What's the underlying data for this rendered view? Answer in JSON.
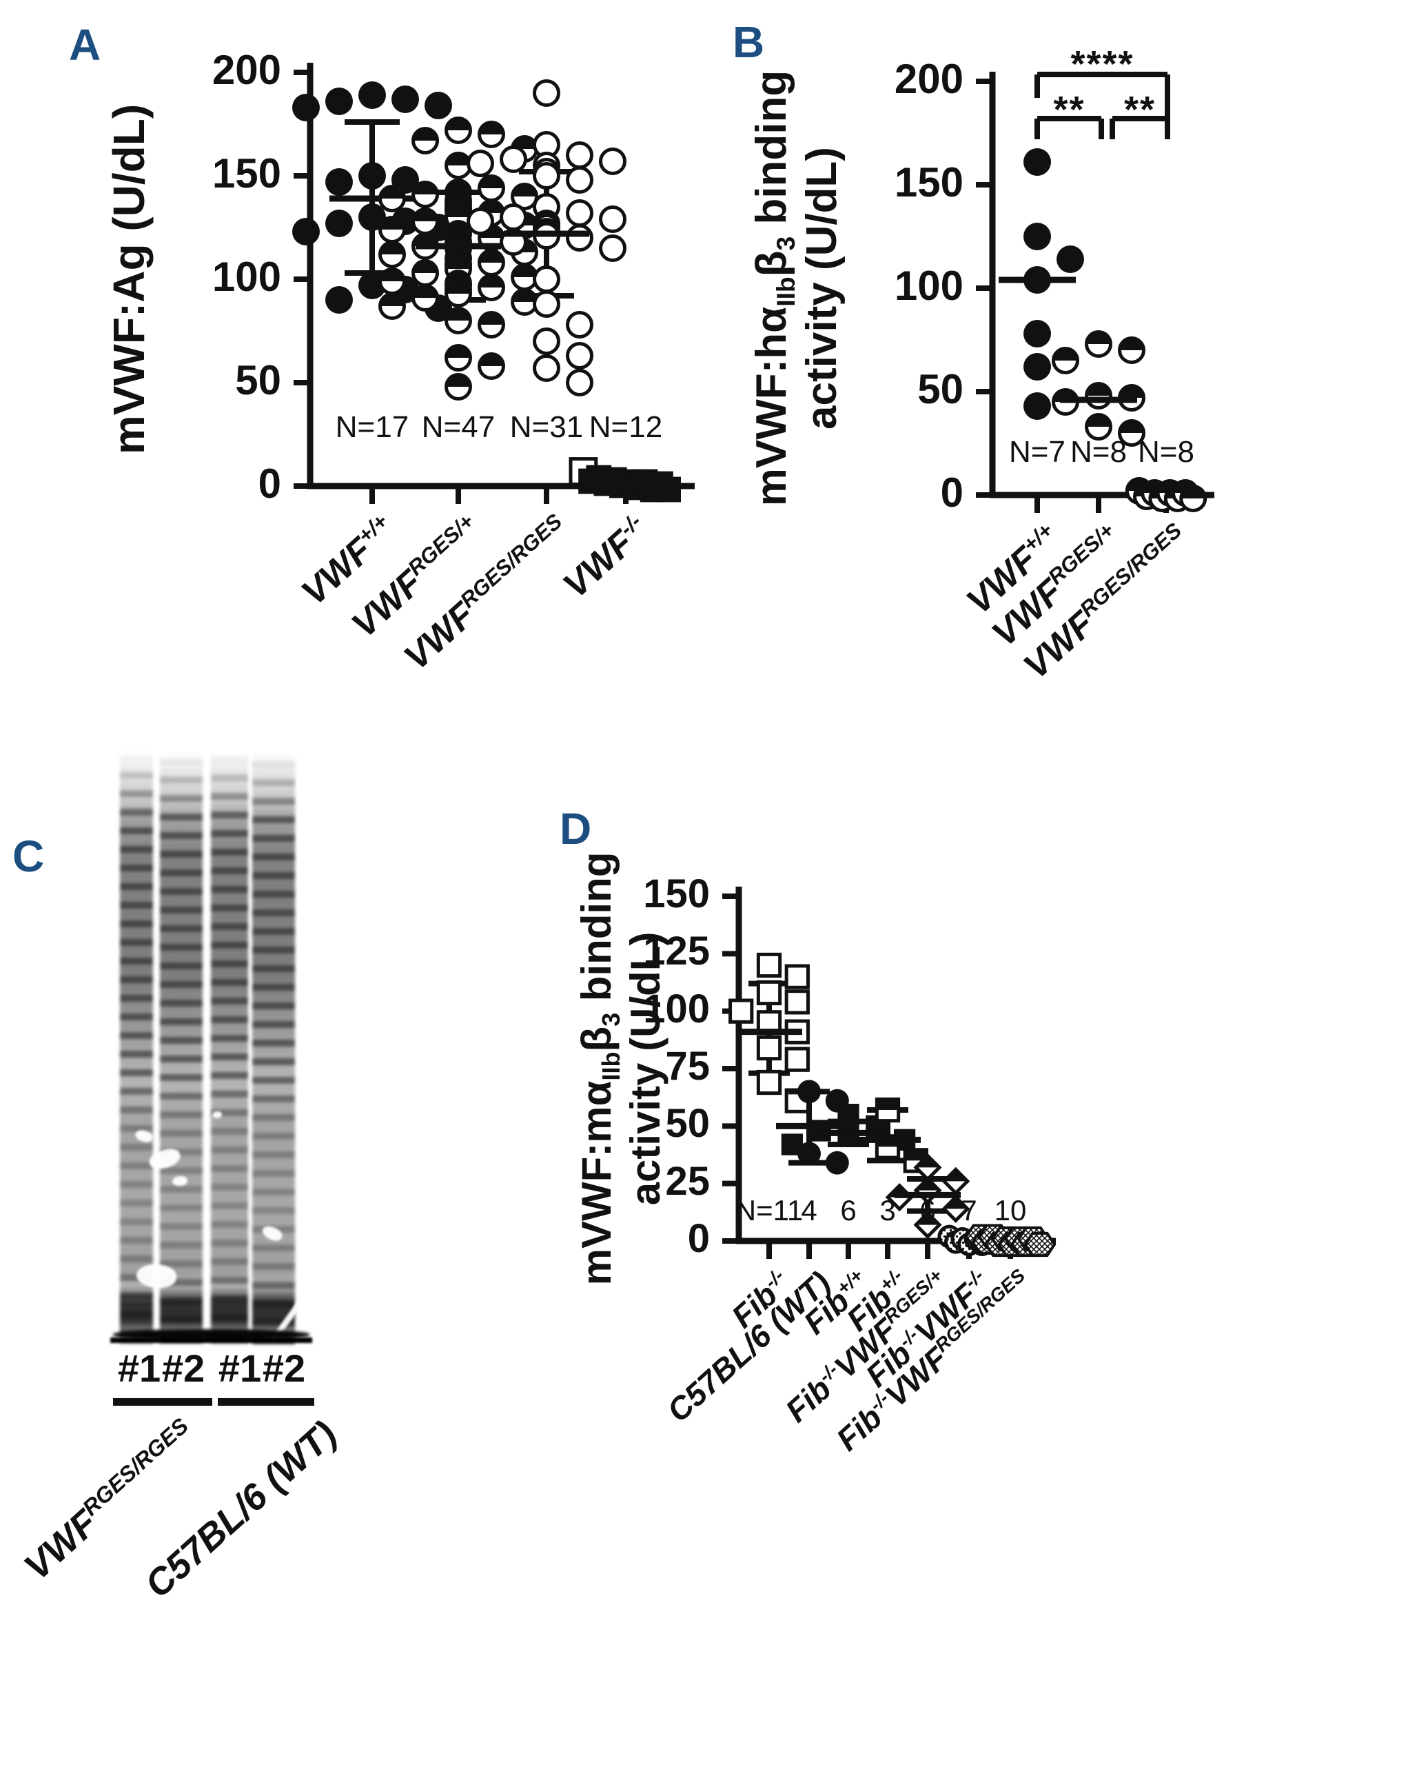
{
  "accent": "#1c4e80",
  "panels": {
    "a": {
      "letter": "A"
    },
    "b": {
      "letter": "B"
    },
    "c": {
      "letter": "C"
    },
    "d": {
      "letter": "D"
    }
  },
  "gel": {
    "lane_labels": [
      "#1",
      "#2",
      "#1",
      "#2"
    ],
    "group_labels": [
      {
        "segments": [
          {
            "t": "VWF"
          },
          {
            "t": "RGES/RGES",
            "sup": true
          }
        ]
      },
      {
        "segments": [
          {
            "t": "C57BL/6 (WT)"
          }
        ]
      }
    ]
  },
  "chart_data": [
    {
      "id": "A",
      "type": "scatter",
      "ylabel_lines": [
        [
          {
            "t": "mVWF:Ag (U/dL)"
          }
        ]
      ],
      "ylim": [
        0,
        200
      ],
      "yticks": [
        0,
        50,
        100,
        150,
        200
      ],
      "grid": false,
      "groups": [
        {
          "label": [
            {
              "t": "VWF"
            },
            {
              "t": "+/+",
              "sup": true
            }
          ],
          "n": "N=17",
          "symbol": "circle-filled",
          "values": [
            189,
            187,
            186,
            184,
            183,
            150,
            148,
            147,
            130,
            128,
            127,
            125,
            123,
            97,
            95,
            90,
            86
          ],
          "mean": 139,
          "err": [
            103,
            176
          ]
        },
        {
          "label": [
            {
              "t": "VWF"
            },
            {
              "t": "RGES/+",
              "sup": true
            }
          ],
          "n": "N=47",
          "symbol": "circle-half",
          "values": [
            172,
            170,
            167,
            163,
            155,
            144,
            142,
            141,
            140,
            139,
            138,
            136,
            134,
            133,
            132,
            130,
            128,
            126,
            124,
            122,
            120,
            118,
            117,
            116,
            115,
            113,
            112,
            110,
            108,
            107,
            105,
            103,
            101,
            99,
            98,
            97,
            96,
            95,
            93,
            91,
            89,
            87,
            80,
            78,
            62,
            58,
            48
          ],
          "mean": 116,
          "err": [
            90,
            142
          ]
        },
        {
          "label": [
            {
              "t": "VWF"
            },
            {
              "t": "RGES/RGES",
              "sup": true
            }
          ],
          "n": "N=31",
          "symbol": "circle-open",
          "values": [
            190,
            165,
            160,
            158,
            157,
            156,
            155,
            152,
            150,
            148,
            135,
            132,
            130,
            129,
            128,
            127,
            126,
            125,
            123,
            122,
            121,
            120,
            118,
            115,
            100,
            88,
            78,
            70,
            63,
            57,
            50
          ],
          "mean": 122,
          "err": [
            92,
            152
          ]
        },
        {
          "label": [
            {
              "t": "VWF"
            },
            {
              "t": "-/-",
              "sup": true
            }
          ],
          "n": "N=12",
          "symbol": "square-filled",
          "cluster": "flat",
          "values": [
            {
              "v": 6,
              "sym": "square-open"
            },
            4,
            3,
            3,
            2,
            2,
            1,
            1,
            1,
            0,
            0,
            0
          ]
        }
      ]
    },
    {
      "id": "B",
      "type": "scatter",
      "ylabel_lines": [
        [
          {
            "t": "mVWF:hα"
          },
          {
            "t": "IIb",
            "sub": true
          },
          {
            "t": "β"
          },
          {
            "t": "3",
            "sub": true
          },
          {
            "t": " binding"
          }
        ],
        [
          {
            "t": "activity (U/dL)"
          }
        ]
      ],
      "ylim": [
        0,
        200
      ],
      "yticks": [
        0,
        50,
        100,
        150,
        200
      ],
      "grid": false,
      "groups": [
        {
          "label": [
            {
              "t": "VWF"
            },
            {
              "t": "+/+",
              "sup": true
            }
          ],
          "n": "N=7",
          "symbol": "circle-filled",
          "values": [
            161,
            125,
            114,
            104,
            78,
            62,
            43
          ],
          "mean": 104
        },
        {
          "label": [
            {
              "t": "VWF"
            },
            {
              "t": "RGES/+",
              "sup": true
            }
          ],
          "n": "N=8",
          "symbol": "circle-half",
          "values": [
            73,
            70,
            65,
            48,
            47,
            45,
            33,
            30
          ],
          "mean": 46
        },
        {
          "label": [
            {
              "t": "VWF"
            },
            {
              "t": "RGES/RGES",
              "sup": true
            }
          ],
          "n": "N=8",
          "symbol": "circle-half",
          "cluster": "flat",
          "values": [
            1,
            1,
            0,
            0,
            0,
            0,
            0,
            0
          ]
        }
      ],
      "brackets": [
        {
          "from": 0,
          "to": 1,
          "label": "**",
          "level": 0
        },
        {
          "from": 1,
          "to": 2,
          "label": "**",
          "level": 0
        },
        {
          "from": 0,
          "to": 2,
          "label": "****",
          "level": 1
        }
      ]
    },
    {
      "id": "D",
      "type": "scatter",
      "ylabel_lines": [
        [
          {
            "t": "mVWF:mα"
          },
          {
            "t": "IIb",
            "sub": true
          },
          {
            "t": "β"
          },
          {
            "t": "3",
            "sub": true
          },
          {
            "t": " binding"
          }
        ],
        [
          {
            "t": "activity (U/dL)"
          }
        ]
      ],
      "ylim": [
        0,
        150
      ],
      "yticks": [
        0,
        25,
        50,
        75,
        100,
        125,
        150
      ],
      "grid": false,
      "groups": [
        {
          "label": [
            {
              "t": "Fib"
            },
            {
              "t": "-/-",
              "sup": true
            }
          ],
          "n": "N=11",
          "symbol": "square-open",
          "values": [
            120,
            115,
            108,
            104,
            100,
            95,
            91,
            84,
            79,
            69,
            61
          ],
          "mean": 91,
          "err": [
            73,
            112
          ]
        },
        {
          "label": [
            {
              "t": "C57BL/6 (WT)"
            }
          ],
          "n": "4",
          "symbol": "circle-filled",
          "values": [
            65,
            61,
            38,
            34
          ],
          "mean": 50,
          "err": [
            34,
            65
          ]
        },
        {
          "label": [
            {
              "t": "Fib"
            },
            {
              "t": "+/+",
              "sup": true
            }
          ],
          "n": "6",
          "symbol": "square-filled",
          "values": [
            55,
            50,
            48,
            46,
            44,
            42
          ],
          "mean": 47,
          "err": [
            42,
            52
          ]
        },
        {
          "label": [
            {
              "t": "Fib"
            },
            {
              "t": "+/-",
              "sup": true
            }
          ],
          "n": "3",
          "symbol": "square-half",
          "values": [
            57,
            41,
            35
          ],
          "mean": 44,
          "err": [
            35,
            57
          ]
        },
        {
          "label": [
            {
              "t": "Fib"
            },
            {
              "t": "-/-",
              "sup": true
            },
            {
              "t": "VWF"
            },
            {
              "t": "RGES/+",
              "sup": true
            }
          ],
          "n": "6",
          "symbol": "diamond-half",
          "values": [
            32,
            26,
            22,
            19,
            14,
            7
          ],
          "mean": 20,
          "err": [
            13,
            27
          ]
        },
        {
          "label": [
            {
              "t": "Fib"
            },
            {
              "t": "-/-",
              "sup": true
            },
            {
              "t": "VWF"
            },
            {
              "t": "-/-",
              "sup": true
            }
          ],
          "n": "7",
          "symbol": "circle-dot",
          "cluster": "flat",
          "values": [
            1,
            1,
            0,
            0,
            0,
            0,
            0
          ]
        },
        {
          "label": [
            {
              "t": "Fib"
            },
            {
              "t": "-/-",
              "sup": true
            },
            {
              "t": "VWF"
            },
            {
              "t": "RGES/RGES",
              "sup": true
            }
          ],
          "n": "10",
          "symbol": "hex-cross",
          "cluster": "flat",
          "values": [
            1,
            1,
            1,
            0,
            0,
            0,
            0,
            0,
            0,
            0
          ]
        }
      ]
    }
  ]
}
